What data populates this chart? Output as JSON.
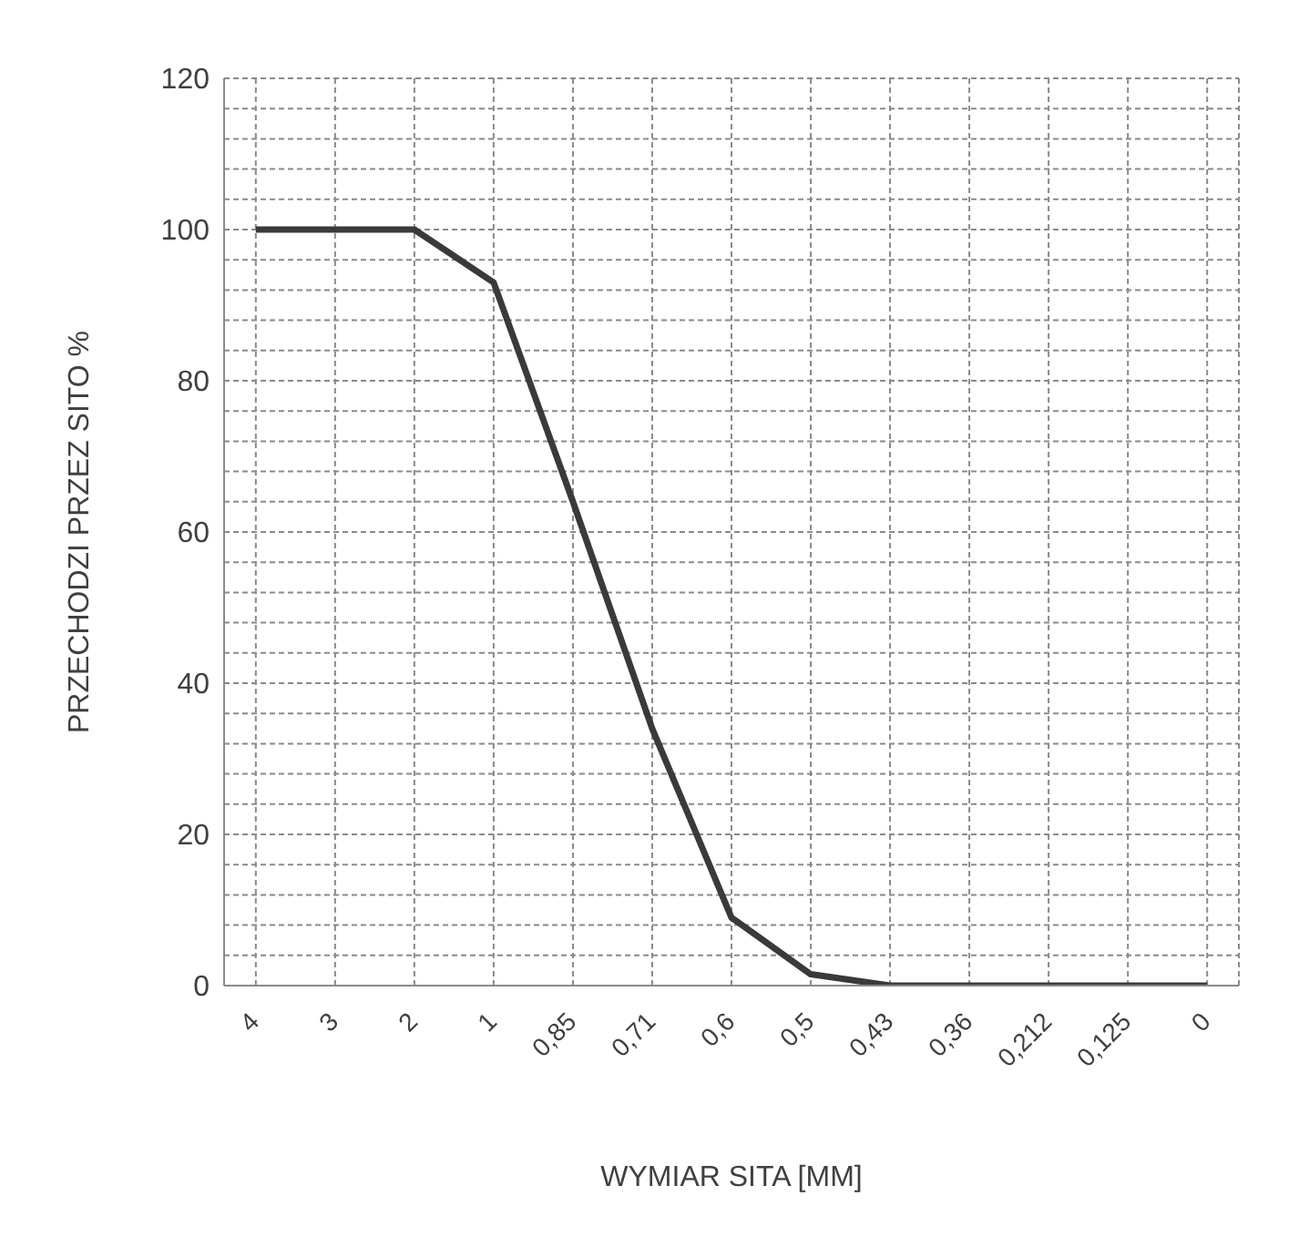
{
  "chart_data": {
    "type": "line",
    "xlabel": "WYMIAR SITA [MM]",
    "ylabel": "PRZECHODZI PRZEZ SITO %",
    "categories": [
      "4",
      "3",
      "2",
      "1",
      "0,85",
      "0,71",
      "0,6",
      "0,5",
      "0,43",
      "0,36",
      "0,212",
      "0,125",
      "0"
    ],
    "series": [
      {
        "color": "#3a3a3a",
        "values": [
          100,
          100,
          100,
          93,
          64,
          34,
          9,
          1.5,
          0,
          0,
          0,
          0,
          0
        ]
      }
    ],
    "ylim": [
      0,
      120
    ],
    "yticks": [
      0,
      {
        "value": 4,
        "label": null
      },
      {
        "value": 8,
        "label": null
      },
      {
        "value": 12,
        "label": null
      },
      {
        "value": 16,
        "label": null
      },
      20,
      {
        "value": 24,
        "label": null
      },
      {
        "value": 28,
        "label": null
      },
      {
        "value": 32,
        "label": null
      },
      {
        "value": 36,
        "label": null
      },
      40,
      {
        "value": 44,
        "label": null
      },
      {
        "value": 48,
        "label": null
      },
      {
        "value": 52,
        "label": null
      },
      {
        "value": 56,
        "label": null
      },
      60,
      {
        "value": 64,
        "label": null
      },
      {
        "value": 68,
        "label": null
      },
      {
        "value": 72,
        "label": null
      },
      {
        "value": 76,
        "label": null
      },
      80,
      {
        "value": 84,
        "label": null
      },
      {
        "value": 88,
        "label": null
      },
      {
        "value": 92,
        "label": null
      },
      {
        "value": 96,
        "label": null
      },
      100,
      {
        "value": 104,
        "label": null
      },
      {
        "value": 108,
        "label": null
      },
      {
        "value": 112,
        "label": null
      },
      {
        "value": 116,
        "label": null
      },
      120
    ],
    "grid": true,
    "marker": "none",
    "line_style": "solid"
  }
}
